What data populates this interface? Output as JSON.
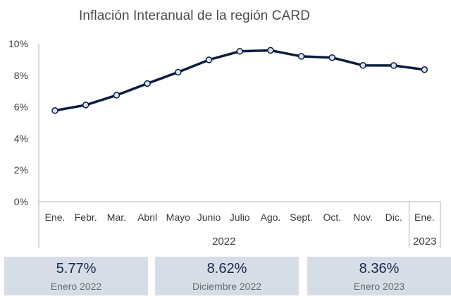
{
  "chart_data": {
    "type": "line",
    "title": "Inflación Interanual de la región CARD",
    "categories": [
      "Ene.",
      "Febr.",
      "Mar.",
      "Abril",
      "Mayo",
      "Junio",
      "Julio",
      "Ago.",
      "Sept.",
      "Oct.",
      "Nov.",
      "Dic.",
      "Ene."
    ],
    "year_groups": [
      {
        "label": "2022",
        "count": 12
      },
      {
        "label": "2023",
        "count": 1
      }
    ],
    "series": [
      {
        "values": [
          5.77,
          6.12,
          6.74,
          7.48,
          8.2,
          8.98,
          9.52,
          9.58,
          9.2,
          9.12,
          8.63,
          8.62,
          8.36
        ],
        "color": "#0d1b3e"
      }
    ],
    "yticks": [
      "0%",
      "2%",
      "4%",
      "6%",
      "8%",
      "10%"
    ],
    "ylim": [
      0,
      10
    ],
    "grid": false,
    "marker_fill": "#dce4f0"
  },
  "cards": [
    {
      "value": "5.77%",
      "label": "Enero 2022"
    },
    {
      "value": "8.62%",
      "label": "Diciembre 2022"
    },
    {
      "value": "8.36%",
      "label": "Enero 2023"
    }
  ]
}
